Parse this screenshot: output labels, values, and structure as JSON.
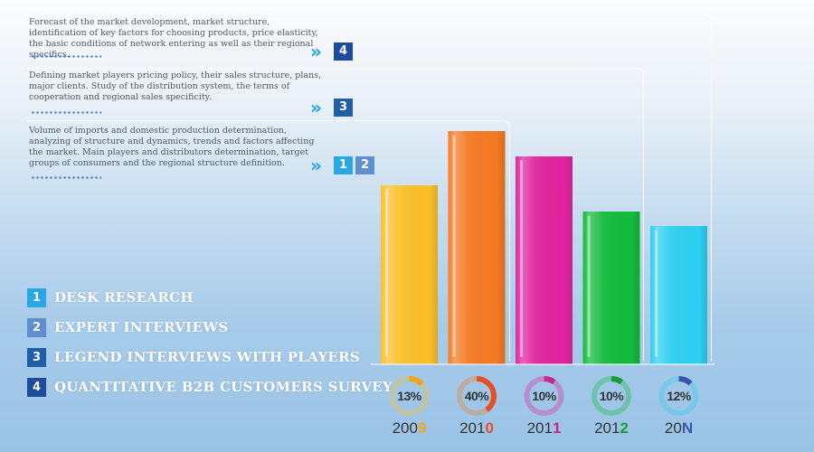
{
  "stages": [
    {
      "text": "Forecast of the market development, market structure, identification of key factors for choosing products, price elasticity, the basic conditions of network entering as well as their regional specifics.",
      "badges": [
        "4"
      ]
    },
    {
      "text": "Defining market players pricing policy, their sales structure, plans, major clients. Study of the distribution system, the terms of cooperation and regional sales specificity.",
      "badges": [
        "3"
      ]
    },
    {
      "text": "Volume of imports and domestic production determination, analyzing of structure and dynamics, trends and factors affecting the market. Main players and distributors determination, target groups of consumers and the regional structure definition.",
      "badges": [
        "1",
        "2"
      ]
    }
  ],
  "legend": [
    {
      "num": "1",
      "label": "DESK RESEARCH",
      "color": "#29a8e4"
    },
    {
      "num": "2",
      "label": "EXPERT INTERVIEWS",
      "color": "#5f8fce"
    },
    {
      "num": "3",
      "label": "LEGEND INTERVIEWS WITH PLAYERS",
      "color": "#1f5fa8"
    },
    {
      "num": "4",
      "label": "QUANTITATIVE B2B CUSTOMERS SURVEY",
      "color": "#1d4d9a"
    }
  ],
  "colors": {
    "badge_1": "#29a8e4",
    "badge_2": "#5f8fce",
    "badge_3": "#1f5fa8",
    "badge_4": "#1d4d9a",
    "chevron": "#1ea5e6"
  },
  "chart_data": {
    "type": "bar",
    "categories": [
      "2009",
      "2010",
      "2011",
      "2012",
      "20N"
    ],
    "year_prefix": [
      "200",
      "201",
      "201",
      "201",
      "20"
    ],
    "year_suffix": [
      "9",
      "0",
      "1",
      "2",
      "N"
    ],
    "values": [
      198,
      258,
      230,
      169,
      153
    ],
    "percent_labels": [
      "13%",
      "40%",
      "10%",
      "10%",
      "12%"
    ],
    "ring_fill": [
      0.13,
      0.4,
      0.1,
      0.1,
      0.12
    ],
    "bar_colors": [
      "#f9c02a",
      "#f47a24",
      "#e0259e",
      "#14bb3c",
      "#2ecff0"
    ],
    "suffix_colors": [
      "#f2a51f",
      "#e64f25",
      "#c7268c",
      "#179b3a",
      "#3a56a8"
    ],
    "ylim": [
      0,
      260
    ]
  }
}
